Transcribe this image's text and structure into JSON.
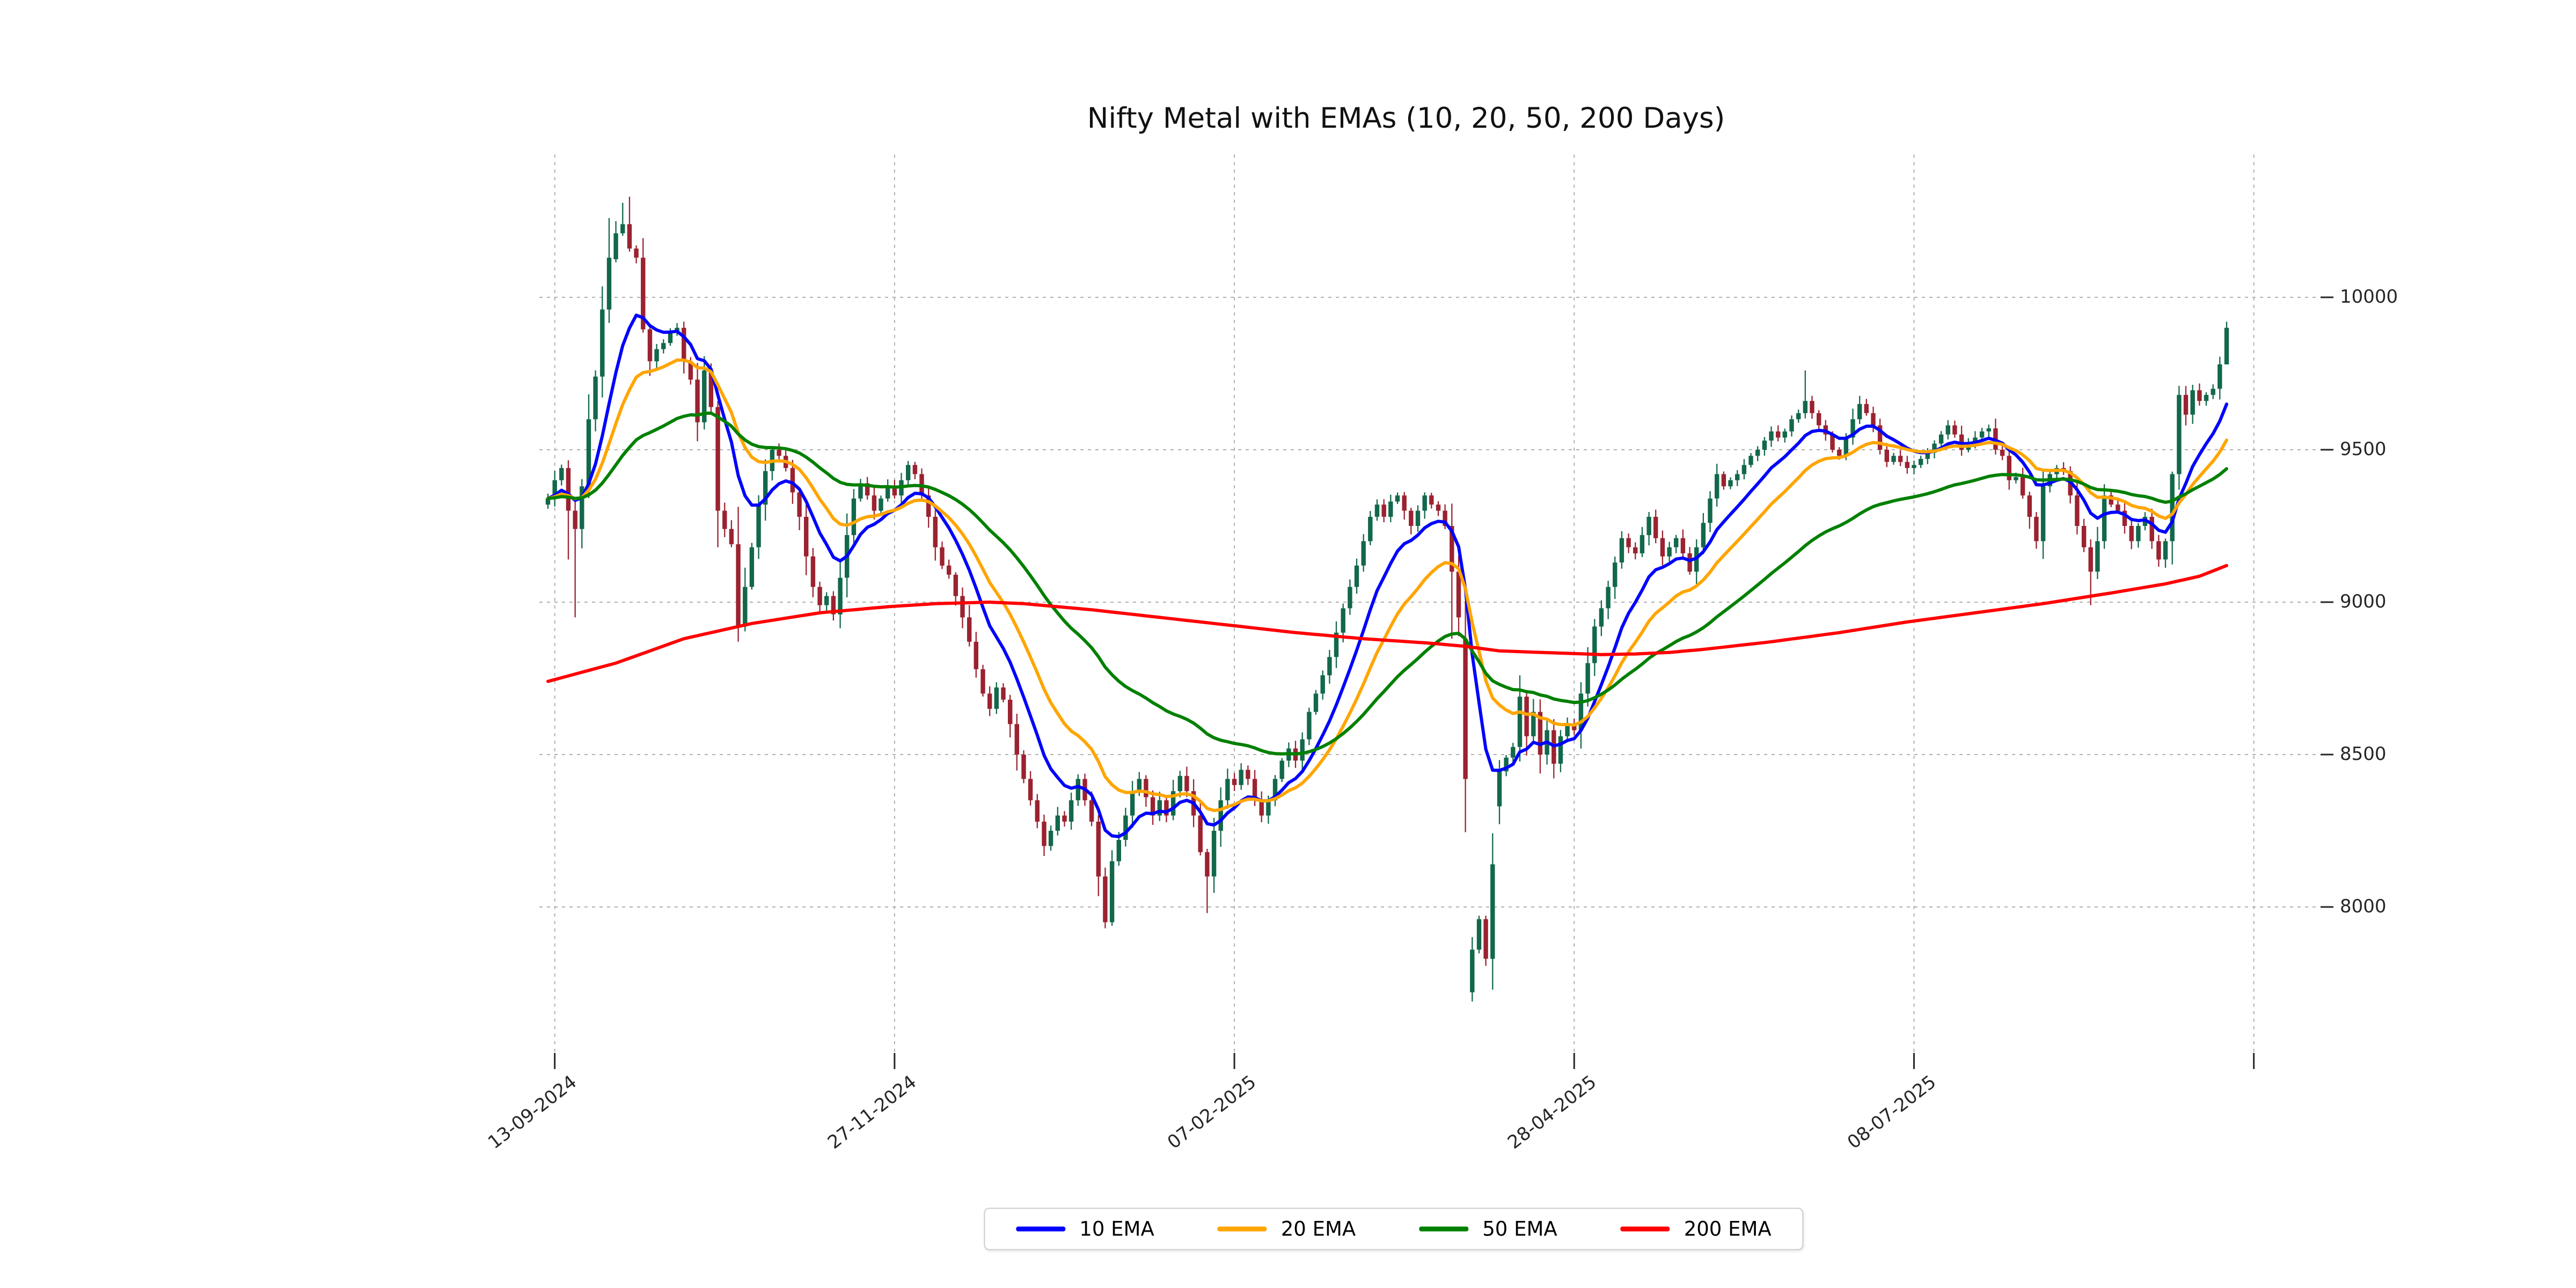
{
  "chart": {
    "title": "Nifty Metal with EMAs (10, 20, 50, 200 Days)",
    "legend": [
      {
        "label": "10 EMA",
        "color": "#0000ff"
      },
      {
        "label": "20 EMA",
        "color": "#ffa500"
      },
      {
        "label": "50 EMA",
        "color": "#008000"
      },
      {
        "label": "200 EMA",
        "color": "#ff0000"
      }
    ]
  },
  "chart_data": {
    "type": "candlestick",
    "title": "Nifty Metal with EMAs (10, 20, 50, 200 Days)",
    "xlabel": "",
    "ylabel": "",
    "grid": true,
    "legend_position": "bottom-center",
    "y_ticks": [
      10000,
      9500,
      9000,
      8500,
      8000
    ],
    "ylim": [
      7525,
      10465
    ],
    "x_ticks": [
      {
        "day": 1,
        "label": "13-09-2024"
      },
      {
        "day": 51,
        "label": "27-11-2024"
      },
      {
        "day": 101,
        "label": "07-02-2025"
      },
      {
        "day": 151,
        "label": "28-04-2025"
      },
      {
        "day": 201,
        "label": "08-07-2025"
      },
      {
        "day": 251,
        "label": ""
      }
    ],
    "colors": {
      "up": "#12684a",
      "down": "#9b2230",
      "grid": "#b0b0b0",
      "tick_text": "#262626"
    },
    "series_legend": [
      "10 EMA",
      "20 EMA",
      "50 EMA",
      "200 EMA"
    ],
    "ema_periods_computed": [
      10,
      20,
      50
    ],
    "closes": [
      9340,
      9400,
      9440,
      9300,
      9240,
      9380,
      9600,
      9740,
      9960,
      10130,
      10210,
      10240,
      10160,
      10130,
      9895,
      9790,
      9830,
      9850,
      9890,
      9900,
      9790,
      9730,
      9590,
      9760,
      9640,
      9300,
      9240,
      9190,
      8920,
      9050,
      9180,
      9320,
      9430,
      9500,
      9480,
      9440,
      9360,
      9280,
      9150,
      9050,
      8990,
      9020,
      8960,
      9080,
      9220,
      9340,
      9390,
      9350,
      9300,
      9340,
      9380,
      9350,
      9400,
      9450,
      9420,
      9350,
      9280,
      9180,
      9120,
      9090,
      9020,
      8950,
      8870,
      8780,
      8700,
      8650,
      8720,
      8680,
      8600,
      8500,
      8420,
      8350,
      8280,
      8200,
      8250,
      8300,
      8280,
      8350,
      8420,
      8350,
      8280,
      8100,
      7950,
      8150,
      8220,
      8300,
      8380,
      8420,
      8360,
      8300,
      8350,
      8300,
      8380,
      8430,
      8380,
      8300,
      8180,
      8100,
      8250,
      8350,
      8420,
      8400,
      8450,
      8420,
      8350,
      8300,
      8350,
      8420,
      8480,
      8520,
      8480,
      8550,
      8640,
      8700,
      8760,
      8820,
      8900,
      8980,
      9050,
      9120,
      9200,
      9280,
      9320,
      9280,
      9330,
      9350,
      9300,
      9250,
      9300,
      9350,
      9320,
      9300,
      9250,
      9100,
      8950,
      8420,
      7860,
      7960,
      7830,
      8140,
      8445,
      8490,
      8525,
      8690,
      8560,
      8640,
      8500,
      8580,
      8470,
      8560,
      8600,
      8580,
      8700,
      8800,
      8920,
      8980,
      9050,
      9130,
      9210,
      9180,
      9160,
      9220,
      9280,
      9210,
      9150,
      9180,
      9210,
      9160,
      9100,
      9180,
      9260,
      9340,
      9420,
      9380,
      9400,
      9420,
      9450,
      9480,
      9500,
      9530,
      9560,
      9540,
      9560,
      9600,
      9620,
      9660,
      9620,
      9580,
      9550,
      9500,
      9480,
      9540,
      9600,
      9650,
      9620,
      9580,
      9500,
      9460,
      9480,
      9460,
      9440,
      9450,
      9470,
      9490,
      9520,
      9550,
      9580,
      9550,
      9500,
      9520,
      9540,
      9560,
      9570,
      9500,
      9480,
      9400,
      9410,
      9350,
      9280,
      9200,
      9380,
      9420,
      9440,
      9430,
      9350,
      9250,
      9180,
      9100,
      9200,
      9350,
      9320,
      9300,
      9250,
      9200,
      9250,
      9280,
      9200,
      9140,
      9200,
      9420,
      9680,
      9615,
      9695,
      9660,
      9680,
      9700,
      9780,
      9900
    ],
    "open_overrides": {
      "0": 9320,
      "10": 10125,
      "135": 8880,
      "136": 7720,
      "140": 8330
    },
    "wick_overrides": {
      "3": {
        "low": 9140
      },
      "4": {
        "low": 8950
      },
      "9": {
        "high": 10260
      },
      "11": {
        "high": 10310
      },
      "12": {
        "high": 10330
      },
      "25": {
        "low": 9180
      },
      "28": {
        "low": 8870
      },
      "82": {
        "low": 7930
      },
      "97": {
        "low": 7980
      },
      "133": {
        "low": 8880
      },
      "136": {
        "low": 7690
      },
      "185": {
        "high": 9760
      },
      "227": {
        "low": 8990
      },
      "247": {
        "high": 9920,
        "low": 9800
      }
    },
    "ema200_waypoints": [
      [
        0,
        8740
      ],
      [
        10,
        8800
      ],
      [
        20,
        8880
      ],
      [
        30,
        8930
      ],
      [
        40,
        8965
      ],
      [
        50,
        8985
      ],
      [
        57,
        8995
      ],
      [
        65,
        9000
      ],
      [
        70,
        8995
      ],
      [
        80,
        8975
      ],
      [
        90,
        8950
      ],
      [
        100,
        8925
      ],
      [
        110,
        8900
      ],
      [
        120,
        8880
      ],
      [
        130,
        8865
      ],
      [
        135,
        8855
      ],
      [
        140,
        8840
      ],
      [
        150,
        8832
      ],
      [
        155,
        8828
      ],
      [
        160,
        8830
      ],
      [
        165,
        8835
      ],
      [
        170,
        8845
      ],
      [
        180,
        8870
      ],
      [
        190,
        8900
      ],
      [
        200,
        8935
      ],
      [
        210,
        8965
      ],
      [
        220,
        8995
      ],
      [
        230,
        9030
      ],
      [
        238,
        9060
      ],
      [
        243,
        9085
      ],
      [
        247,
        9120
      ]
    ],
    "ema_end_values": {
      "ema10": 9676,
      "ema20": 9560,
      "ema50": 9430,
      "ema200": 9120
    }
  }
}
